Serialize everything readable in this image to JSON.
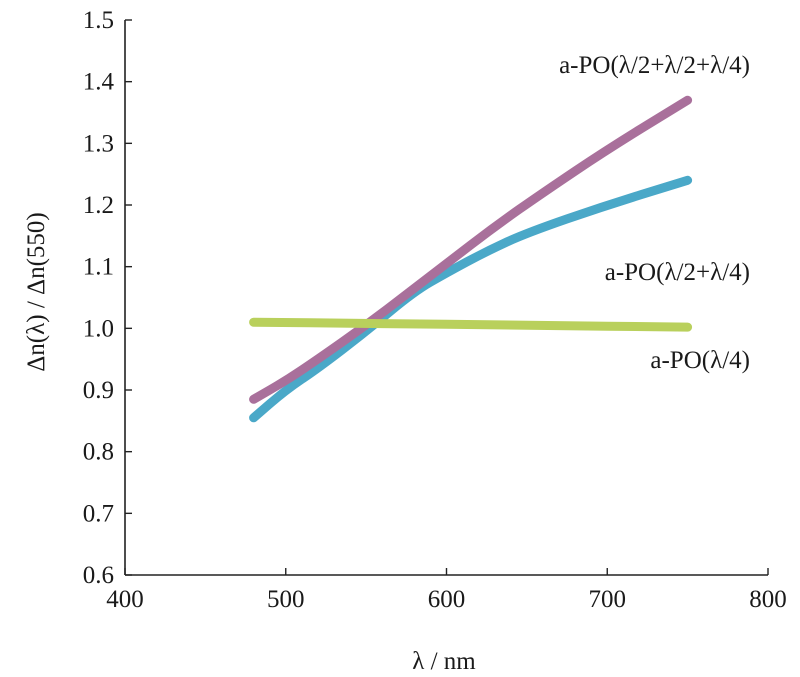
{
  "chart_data": {
    "type": "line",
    "title": "",
    "xlabel": "λ / nm",
    "ylabel": "Δn(λ) / Δn(550)",
    "xlim": [
      400,
      800
    ],
    "ylim": [
      0.6,
      1.5
    ],
    "grid": false,
    "x_ticks": [
      400,
      500,
      600,
      700,
      800
    ],
    "y_ticks": [
      0.6,
      0.7,
      0.8,
      0.9,
      1.0,
      1.1,
      1.2,
      1.3,
      1.4,
      1.5
    ],
    "x_tick_labels": [
      "400",
      "500",
      "600",
      "700",
      "800"
    ],
    "y_tick_labels": [
      "0.6",
      "0.7",
      "0.8",
      "0.9",
      "1.0",
      "1.1",
      "1.2",
      "1.3",
      "1.4",
      "1.5"
    ],
    "series": [
      {
        "name": "a-PO(λ/2+λ/2+λ/4)",
        "color": "#a9709b",
        "x": [
          480,
          500,
          520,
          550,
          580,
          600,
          630,
          660,
          700,
          750
        ],
        "y": [
          0.885,
          0.915,
          0.95,
          1.005,
          1.065,
          1.105,
          1.165,
          1.22,
          1.29,
          1.37
        ]
      },
      {
        "name": "a-PO(λ/2+λ/4)",
        "color": "#4aa8c8",
        "x": [
          480,
          500,
          520,
          550,
          580,
          600,
          625,
          650,
          700,
          750
        ],
        "y": [
          0.855,
          0.9,
          0.935,
          0.995,
          1.06,
          1.09,
          1.125,
          1.155,
          1.2,
          1.24
        ]
      },
      {
        "name": "a-PO(λ/4)",
        "color": "#b9d05c",
        "x": [
          480,
          550,
          650,
          750
        ],
        "y": [
          1.01,
          1.008,
          1.005,
          1.002
        ]
      }
    ]
  }
}
